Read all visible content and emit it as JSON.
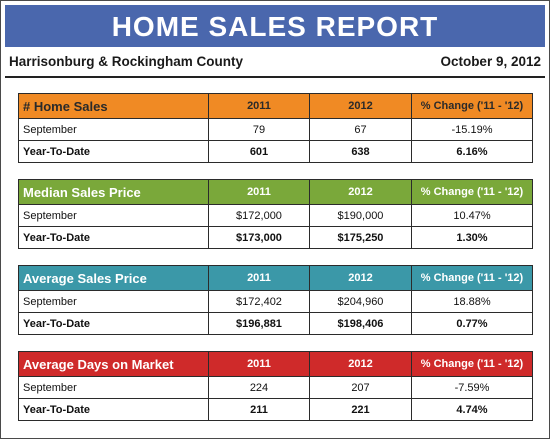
{
  "report": {
    "title": "HOME SALES REPORT",
    "region": "Harrisonburg & Rockingham County",
    "date": "October 9, 2012"
  },
  "colors": {
    "banner": "#4a67ad",
    "home_sales": "#f08a24",
    "median_price": "#7aa83a",
    "average_price": "#3b98a8",
    "days_on_market": "#cf2a2a"
  },
  "tables": [
    {
      "metric": "# Home Sales",
      "col_2011": "2011",
      "col_2012": "2012",
      "col_change": "% Change ('11 - '12)",
      "rows": [
        {
          "label": "September",
          "v2011": "79",
          "v2012": "67",
          "change": "-15.19%"
        },
        {
          "label": "Year-To-Date",
          "v2011": "601",
          "v2012": "638",
          "change": "6.16%"
        }
      ]
    },
    {
      "metric": "Median Sales Price",
      "col_2011": "2011",
      "col_2012": "2012",
      "col_change": "% Change ('11 - '12)",
      "rows": [
        {
          "label": "September",
          "v2011": "$172,000",
          "v2012": "$190,000",
          "change": "10.47%"
        },
        {
          "label": "Year-To-Date",
          "v2011": "$173,000",
          "v2012": "$175,250",
          "change": "1.30%"
        }
      ]
    },
    {
      "metric": "Average Sales Price",
      "col_2011": "2011",
      "col_2012": "2012",
      "col_change": "% Change ('11 - '12)",
      "rows": [
        {
          "label": "September",
          "v2011": "$172,402",
          "v2012": "$204,960",
          "change": "18.88%"
        },
        {
          "label": "Year-To-Date",
          "v2011": "$196,881",
          "v2012": "$198,406",
          "change": "0.77%"
        }
      ]
    },
    {
      "metric": "Average Days on Market",
      "col_2011": "2011",
      "col_2012": "2012",
      "col_change": "% Change ('11 - '12)",
      "rows": [
        {
          "label": "September",
          "v2011": "224",
          "v2012": "207",
          "change": "-7.59%"
        },
        {
          "label": "Year-To-Date",
          "v2011": "211",
          "v2012": "221",
          "change": "4.74%"
        }
      ]
    }
  ]
}
